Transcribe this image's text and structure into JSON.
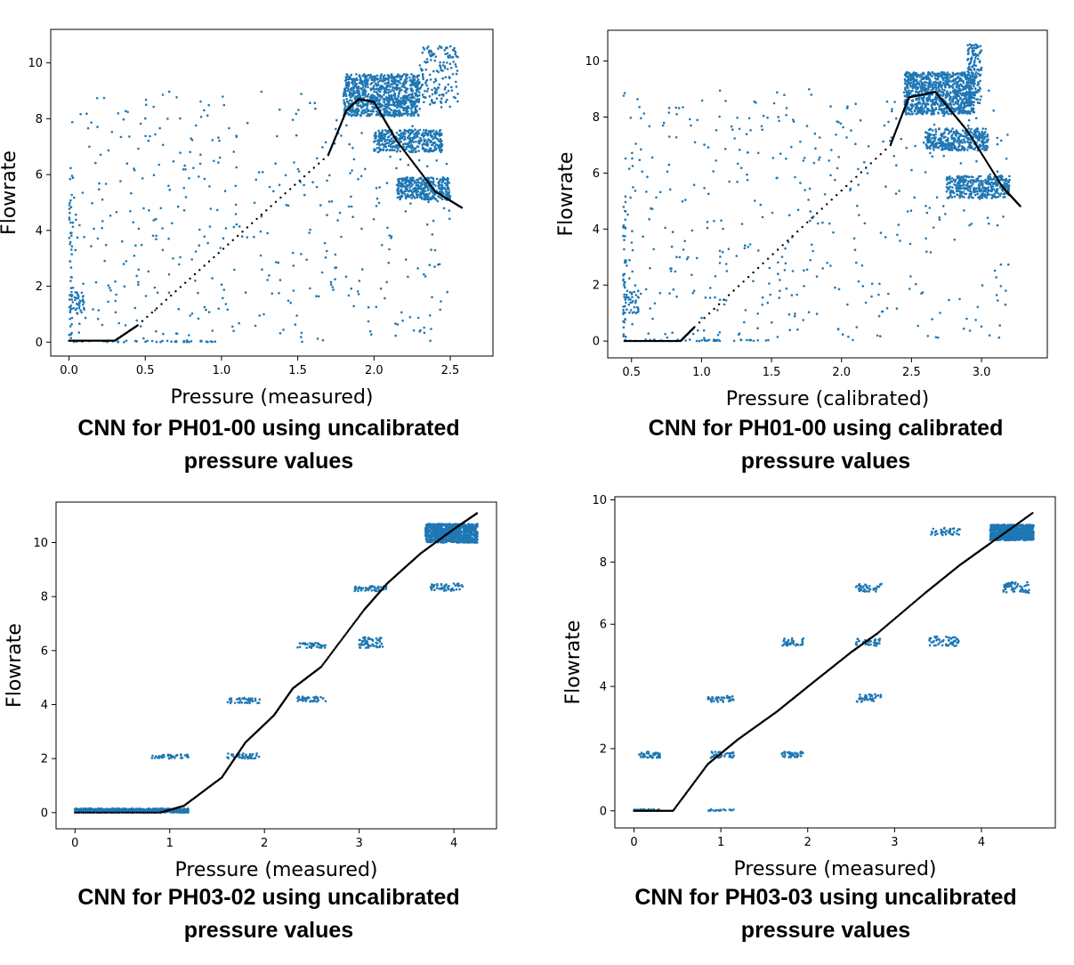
{
  "chart_data": [
    {
      "type": "scatter",
      "xlabel": "Pressure (measured)",
      "ylabel": "Flowrate",
      "caption": [
        "CNN for PH01-00 using uncalibrated",
        "pressure values"
      ],
      "xlim": [
        -0.12,
        2.78
      ],
      "ylim": [
        -0.5,
        11.2
      ],
      "xticks": [
        0.0,
        0.5,
        1.0,
        1.5,
        2.0,
        2.5
      ],
      "xtick_labels": [
        "0.0",
        "0.5",
        "1.0",
        "1.5",
        "2.0",
        "2.5"
      ],
      "yticks": [
        0,
        2,
        4,
        6,
        8,
        10
      ],
      "ytick_labels": [
        "0",
        "2",
        "4",
        "6",
        "8",
        "10"
      ],
      "grid": false,
      "measured_clusters": [
        {
          "x": [
            1.8,
            2.3
          ],
          "y": [
            8.1,
            9.6
          ],
          "n": 900
        },
        {
          "x": [
            2.0,
            2.45
          ],
          "y": [
            6.8,
            7.6
          ],
          "n": 350
        },
        {
          "x": [
            2.15,
            2.5
          ],
          "y": [
            5.1,
            5.9
          ],
          "n": 350
        },
        {
          "x": [
            2.3,
            2.55
          ],
          "y": [
            8.5,
            10.6
          ],
          "n": 150
        },
        {
          "x": [
            0.0,
            0.02
          ],
          "y": [
            0.0,
            5.3
          ],
          "n": 40
        },
        {
          "x": [
            0.0,
            0.1
          ],
          "y": [
            1.0,
            1.8
          ],
          "n": 40
        },
        {
          "x": [
            0.0,
            2.5
          ],
          "y": [
            0.0,
            9.0
          ],
          "n": 450
        },
        {
          "x": [
            0.0,
            1.0
          ],
          "y": [
            0.0,
            0.05
          ],
          "n": 40
        }
      ],
      "prediction": {
        "x": [
          0.0,
          0.3,
          0.45,
          1.7,
          1.82,
          1.9,
          2.0,
          2.15,
          2.4,
          2.58
        ],
        "y": [
          0.05,
          0.05,
          0.6,
          6.7,
          8.3,
          8.7,
          8.6,
          7.2,
          5.4,
          4.8
        ]
      }
    },
    {
      "type": "scatter",
      "xlabel": "Pressure (calibrated)",
      "ylabel": "Flowrate",
      "caption": [
        "CNN for PH01-00 using calibrated",
        "pressure values"
      ],
      "xlim": [
        0.33,
        3.47
      ],
      "ylim": [
        -0.6,
        11.1
      ],
      "xticks": [
        0.5,
        1.0,
        1.5,
        2.0,
        2.5,
        3.0
      ],
      "xtick_labels": [
        "0.5",
        "1.0",
        "1.5",
        "2.0",
        "2.5",
        "3.0"
      ],
      "yticks": [
        0,
        2,
        4,
        6,
        8,
        10
      ],
      "ytick_labels": [
        "0",
        "2",
        "4",
        "6",
        "8",
        "10"
      ],
      "grid": false,
      "measured_clusters": [
        {
          "x": [
            2.45,
            2.95
          ],
          "y": [
            8.1,
            9.6
          ],
          "n": 900
        },
        {
          "x": [
            2.6,
            3.05
          ],
          "y": [
            6.8,
            7.6
          ],
          "n": 350
        },
        {
          "x": [
            2.75,
            3.2
          ],
          "y": [
            5.1,
            5.9
          ],
          "n": 350
        },
        {
          "x": [
            2.9,
            3.0
          ],
          "y": [
            8.5,
            10.6
          ],
          "n": 150
        },
        {
          "x": [
            0.44,
            0.46
          ],
          "y": [
            0.0,
            5.3
          ],
          "n": 40
        },
        {
          "x": [
            0.44,
            0.55
          ],
          "y": [
            1.0,
            1.8
          ],
          "n": 40
        },
        {
          "x": [
            0.44,
            3.2
          ],
          "y": [
            0.0,
            9.0
          ],
          "n": 450
        },
        {
          "x": [
            0.44,
            1.5
          ],
          "y": [
            0.0,
            0.05
          ],
          "n": 40
        }
      ],
      "prediction": {
        "x": [
          0.45,
          0.85,
          0.95,
          2.35,
          2.48,
          2.67,
          2.9,
          3.15,
          3.28
        ],
        "y": [
          0.0,
          0.0,
          0.5,
          7.0,
          8.7,
          8.9,
          7.5,
          5.5,
          4.8
        ]
      }
    },
    {
      "type": "scatter",
      "xlabel": "Pressure (measured)",
      "ylabel": "Flowrate",
      "caption": [
        "CNN for PH03-02 using uncalibrated",
        "pressure values"
      ],
      "xlim": [
        -0.2,
        4.45
      ],
      "ylim": [
        -0.6,
        11.5
      ],
      "xticks": [
        0,
        1,
        2,
        3,
        4
      ],
      "xtick_labels": [
        "0",
        "1",
        "2",
        "3",
        "4"
      ],
      "yticks": [
        0,
        2,
        4,
        6,
        8,
        10
      ],
      "ytick_labels": [
        "0",
        "2",
        "4",
        "6",
        "8",
        "10"
      ],
      "grid": false,
      "measured_clusters": [
        {
          "x": [
            3.7,
            4.25
          ],
          "y": [
            10.0,
            10.7
          ],
          "n": 900
        },
        {
          "x": [
            3.75,
            4.1
          ],
          "y": [
            8.2,
            8.5
          ],
          "n": 50
        },
        {
          "x": [
            2.95,
            3.3
          ],
          "y": [
            8.2,
            8.4
          ],
          "n": 50
        },
        {
          "x": [
            3.0,
            3.25
          ],
          "y": [
            6.1,
            6.5
          ],
          "n": 60
        },
        {
          "x": [
            2.35,
            2.65
          ],
          "y": [
            6.1,
            6.3
          ],
          "n": 40
        },
        {
          "x": [
            2.35,
            2.65
          ],
          "y": [
            4.1,
            4.3
          ],
          "n": 40
        },
        {
          "x": [
            1.6,
            1.95
          ],
          "y": [
            4.05,
            4.25
          ],
          "n": 40
        },
        {
          "x": [
            1.6,
            1.95
          ],
          "y": [
            2.0,
            2.2
          ],
          "n": 40
        },
        {
          "x": [
            0.8,
            1.2
          ],
          "y": [
            2.0,
            2.15
          ],
          "n": 40
        },
        {
          "x": [
            0.0,
            1.2
          ],
          "y": [
            0.0,
            0.15
          ],
          "n": 600
        }
      ],
      "prediction": {
        "x": [
          0.0,
          0.9,
          1.15,
          1.55,
          1.8,
          2.1,
          2.3,
          2.6,
          3.05,
          3.3,
          3.65,
          4.0,
          4.25
        ],
        "y": [
          0.0,
          0.0,
          0.25,
          1.3,
          2.6,
          3.6,
          4.6,
          5.4,
          7.5,
          8.5,
          9.6,
          10.5,
          11.1
        ]
      }
    },
    {
      "type": "scatter",
      "xlabel": "Pressure (measured)",
      "ylabel": "Flowrate",
      "caption": [
        "CNN for PH03-03 using uncalibrated",
        "pressure values"
      ],
      "xlim": [
        -0.22,
        4.85
      ],
      "ylim": [
        -0.55,
        10.1
      ],
      "xticks": [
        0,
        1,
        2,
        3,
        4
      ],
      "xtick_labels": [
        "0",
        "1",
        "2",
        "3",
        "4"
      ],
      "yticks": [
        0,
        2,
        4,
        6,
        8,
        10
      ],
      "ytick_labels": [
        "0",
        "2",
        "4",
        "6",
        "8",
        "10"
      ],
      "grid": false,
      "measured_clusters": [
        {
          "x": [
            4.1,
            4.6
          ],
          "y": [
            8.7,
            9.2
          ],
          "n": 900
        },
        {
          "x": [
            4.25,
            4.55
          ],
          "y": [
            7.0,
            7.35
          ],
          "n": 60
        },
        {
          "x": [
            3.4,
            3.75
          ],
          "y": [
            8.85,
            9.1
          ],
          "n": 40
        },
        {
          "x": [
            3.4,
            3.75
          ],
          "y": [
            5.3,
            5.6
          ],
          "n": 50
        },
        {
          "x": [
            2.55,
            2.85
          ],
          "y": [
            7.05,
            7.3
          ],
          "n": 40
        },
        {
          "x": [
            2.55,
            2.85
          ],
          "y": [
            5.3,
            5.55
          ],
          "n": 40
        },
        {
          "x": [
            2.55,
            2.85
          ],
          "y": [
            3.5,
            3.75
          ],
          "n": 40
        },
        {
          "x": [
            1.7,
            1.95
          ],
          "y": [
            5.3,
            5.55
          ],
          "n": 40
        },
        {
          "x": [
            1.7,
            1.95
          ],
          "y": [
            1.7,
            1.9
          ],
          "n": 40
        },
        {
          "x": [
            0.85,
            1.15
          ],
          "y": [
            3.5,
            3.7
          ],
          "n": 40
        },
        {
          "x": [
            0.85,
            1.15
          ],
          "y": [
            1.7,
            1.9
          ],
          "n": 40
        },
        {
          "x": [
            0.85,
            1.15
          ],
          "y": [
            0.0,
            0.05
          ],
          "n": 20
        },
        {
          "x": [
            0.05,
            0.3
          ],
          "y": [
            1.7,
            1.9
          ],
          "n": 40
        },
        {
          "x": [
            0.0,
            0.3
          ],
          "y": [
            0.0,
            0.05
          ],
          "n": 40
        }
      ],
      "prediction": {
        "x": [
          0.0,
          0.45,
          0.85,
          1.2,
          1.65,
          2.05,
          2.5,
          2.8,
          3.35,
          3.75,
          4.1,
          4.6
        ],
        "y": [
          0.0,
          0.0,
          1.5,
          2.3,
          3.2,
          4.1,
          5.1,
          5.7,
          7.0,
          7.9,
          8.6,
          9.6
        ]
      }
    }
  ],
  "colors": {
    "measured": "#1f77b4",
    "prediction": "#000000"
  }
}
